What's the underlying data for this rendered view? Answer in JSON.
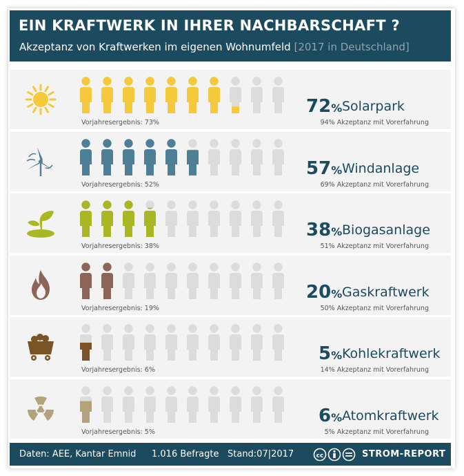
{
  "title": "EIN KRAFTWERK IN IHRER NACHBARSCHAFT ?",
  "subtitle_main": "Akzeptanz von Kraftwerken im eigenen Wohnumfeld",
  "subtitle_note": "[2017 in Deutschland]",
  "colors": {
    "header": "#1c4a5e",
    "empty_person": "#dcdcdc",
    "solar": "#f5c93b",
    "wind": "#4f7f96",
    "biogas": "#a9b725",
    "gas": "#8d6558",
    "coal": "#7a5426",
    "nuclear": "#b3a37a"
  },
  "chart_data": {
    "type": "bar",
    "categories": [
      "Solarpark",
      "Windanlage",
      "Biogasanlage",
      "Gaskraftwerk",
      "Kohlekraftwerk",
      "Atomkraftwerk"
    ],
    "values": [
      72,
      57,
      38,
      20,
      5,
      6
    ],
    "unit": "%",
    "scale": "10 Personen = 100%",
    "previous_year_label": "Vorjahresergebnis:",
    "previous_year": [
      73,
      52,
      38,
      19,
      6,
      5
    ],
    "experience_suffix": "Akzeptanz mit Vorerfahrung",
    "acceptance_with_experience": [
      94,
      69,
      51,
      50,
      14,
      5
    ],
    "icons": [
      "sun-icon",
      "wind-turbine-icon",
      "sprout-icon",
      "flame-icon",
      "coal-cart-icon",
      "radiation-icon"
    ]
  },
  "footer": {
    "source": "Daten: AEE, Kantar Emnid",
    "respondents": "1.016 Befragte",
    "date": "Stand:07|2017",
    "brand": "STROM-REPORT"
  }
}
